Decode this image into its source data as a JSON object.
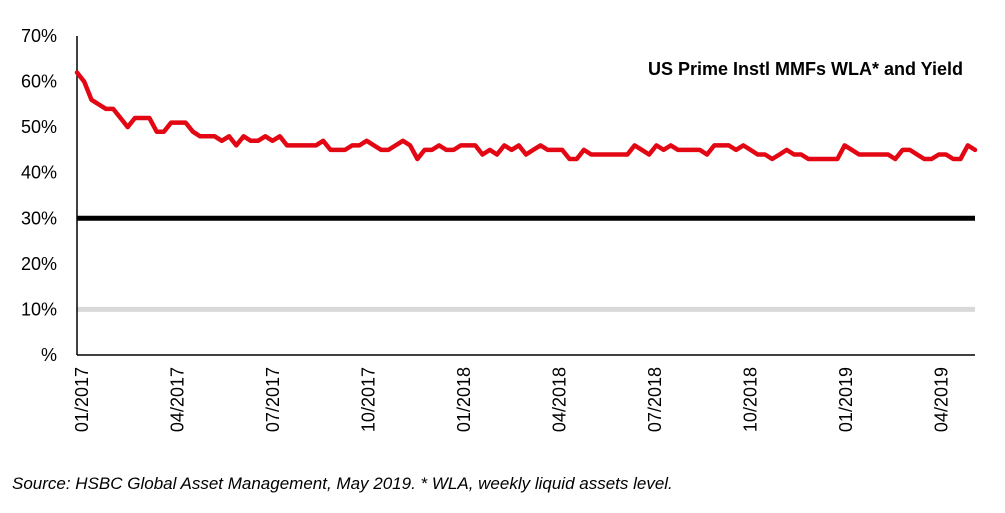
{
  "chart_data": {
    "type": "line",
    "title": "US Prime Instl MMFs WLA* and Yield",
    "y_ticks": [
      "%",
      "10%",
      "20%",
      "30%",
      "40%",
      "50%",
      "60%",
      "70%"
    ],
    "ylim": [
      0,
      70
    ],
    "x_ticks": [
      "01/2017",
      "04/2017",
      "07/2017",
      "10/2017",
      "01/2018",
      "04/2018",
      "07/2018",
      "10/2018",
      "01/2019",
      "04/2019"
    ],
    "series": [
      {
        "name": "WLA",
        "color": "#e30613",
        "values": [
          62,
          60,
          56,
          55,
          54,
          54,
          52,
          50,
          52,
          52,
          52,
          49,
          49,
          51,
          51,
          51,
          49,
          48,
          48,
          48,
          47,
          48,
          46,
          48,
          47,
          47,
          48,
          47,
          48,
          46,
          46,
          46,
          46,
          46,
          47,
          45,
          45,
          45,
          46,
          46,
          47,
          46,
          45,
          45,
          46,
          47,
          46,
          43,
          45,
          45,
          46,
          45,
          45,
          46,
          46,
          46,
          44,
          45,
          44,
          46,
          45,
          46,
          44,
          45,
          46,
          45,
          45,
          45,
          43,
          43,
          45,
          44,
          44,
          44,
          44,
          44,
          44,
          46,
          45,
          44,
          46,
          45,
          46,
          45,
          45,
          45,
          45,
          44,
          46,
          46,
          46,
          45,
          46,
          45,
          44,
          44,
          43,
          44,
          45,
          44,
          44,
          43,
          43,
          43,
          43,
          43,
          46,
          45,
          44,
          44,
          44,
          44,
          44,
          43,
          45,
          45,
          44,
          43,
          43,
          44,
          44,
          43,
          43,
          46,
          45
        ]
      },
      {
        "name": "30% level",
        "color": "#000000",
        "values": [
          30
        ]
      },
      {
        "name": "10% level",
        "color": "#d9d9d9",
        "values": [
          10
        ]
      }
    ]
  },
  "source": "Source: HSBC Global Asset Management, May 2019. * WLA, weekly liquid assets level."
}
